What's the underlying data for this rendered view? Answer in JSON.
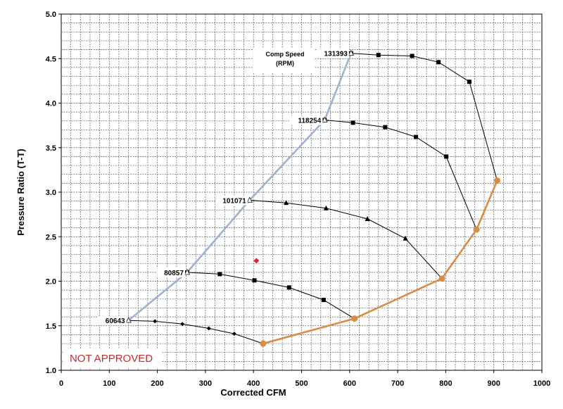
{
  "chart_data": {
    "type": "line",
    "title": "",
    "xlabel": "Corrected CFM",
    "ylabel": "Pressure Ratio (T-T)",
    "xlim": [
      0,
      1000
    ],
    "ylim": [
      1.0,
      5.0
    ],
    "x_ticks": [
      "0",
      "100",
      "200",
      "300",
      "400",
      "500",
      "600",
      "700",
      "800",
      "900",
      "1000"
    ],
    "y_ticks": [
      "1.0",
      "1.5",
      "2.0",
      "2.5",
      "3.0",
      "3.5",
      "4.0",
      "4.5",
      "5.0"
    ],
    "grid": true,
    "legend_title": "Comp Speed",
    "legend_subtitle": "(RPM)",
    "stamp_text": "NOT APPROVED",
    "speed_lines": [
      {
        "label": "60643",
        "marker": "diamond",
        "points": [
          [
            140,
            1.56
          ],
          [
            195,
            1.55
          ],
          [
            252,
            1.52
          ],
          [
            307,
            1.47
          ],
          [
            360,
            1.41
          ],
          [
            420,
            1.3
          ]
        ]
      },
      {
        "label": "80857",
        "marker": "square",
        "points": [
          [
            262,
            2.1
          ],
          [
            330,
            2.08
          ],
          [
            402,
            2.01
          ],
          [
            474,
            1.93
          ],
          [
            546,
            1.79
          ],
          [
            610,
            1.58
          ]
        ]
      },
      {
        "label": "101071",
        "marker": "triangle",
        "points": [
          [
            392,
            2.91
          ],
          [
            468,
            2.88
          ],
          [
            551,
            2.82
          ],
          [
            637,
            2.7
          ],
          [
            716,
            2.48
          ],
          [
            792,
            2.03
          ]
        ]
      },
      {
        "label": "118254",
        "marker": "square",
        "points": [
          [
            548,
            3.81
          ],
          [
            607,
            3.78
          ],
          [
            674,
            3.73
          ],
          [
            738,
            3.62
          ],
          [
            801,
            3.4
          ],
          [
            864,
            2.58
          ]
        ]
      },
      {
        "label": "131393",
        "marker": "square",
        "points": [
          [
            603,
            4.56
          ],
          [
            660,
            4.54
          ],
          [
            730,
            4.53
          ],
          [
            785,
            4.46
          ],
          [
            849,
            4.24
          ],
          [
            907,
            3.13
          ]
        ]
      }
    ],
    "surge_line": {
      "color": "#9db3cf",
      "points": [
        [
          140,
          1.56
        ],
        [
          262,
          2.1
        ],
        [
          392,
          2.91
        ],
        [
          548,
          3.81
        ],
        [
          603,
          4.56
        ]
      ]
    },
    "choke_line": {
      "color": "#d98c46",
      "points": [
        [
          420,
          1.3
        ],
        [
          610,
          1.58
        ],
        [
          792,
          2.03
        ],
        [
          864,
          2.58
        ],
        [
          907,
          3.13
        ]
      ]
    },
    "extra_point": {
      "x": 406,
      "y": 2.23,
      "color": "#e8252a"
    }
  }
}
